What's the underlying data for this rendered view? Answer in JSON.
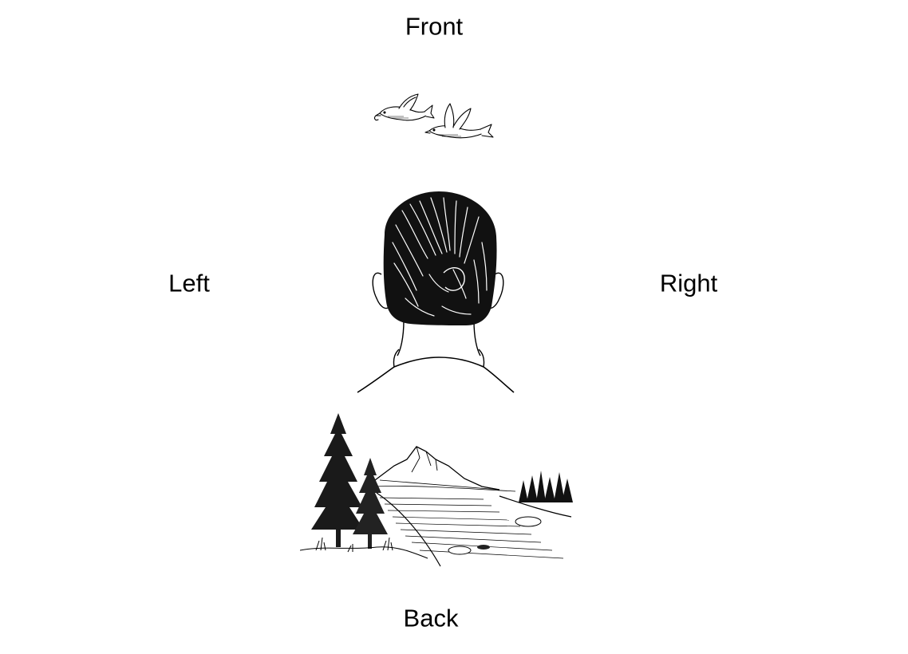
{
  "labels": {
    "front": "Front",
    "back": "Back",
    "left": "Left",
    "right": "Right"
  },
  "illustrations": {
    "top": "birds-illustration",
    "center": "head-back-view-illustration",
    "bottom": "landscape-illustration"
  },
  "colors": {
    "ink": "#000000",
    "background": "#ffffff"
  }
}
